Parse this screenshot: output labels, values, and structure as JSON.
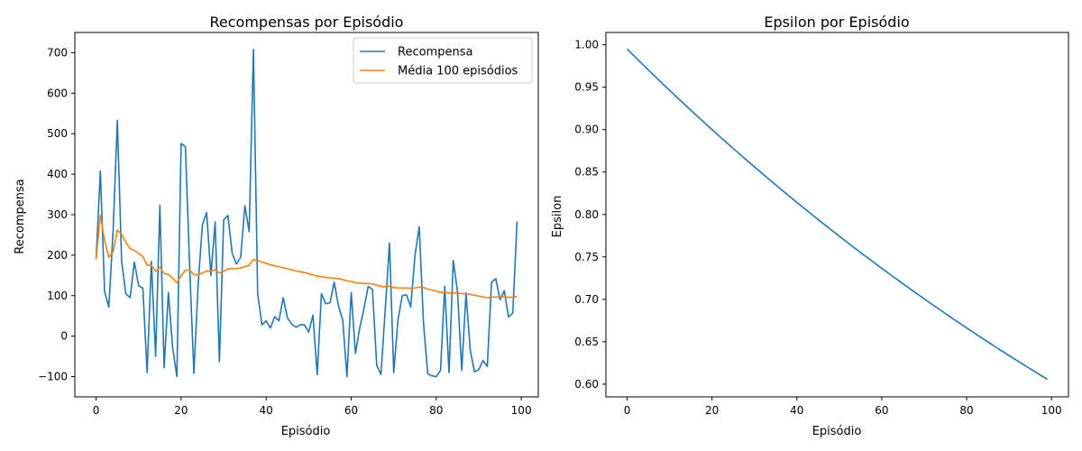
{
  "chart_data": [
    {
      "type": "line",
      "title": "Recompensas por Episódio",
      "xlabel": "Episódio",
      "ylabel": "Recompensa",
      "xlim": [
        -5,
        104
      ],
      "ylim": [
        -150,
        750
      ],
      "xticks": [
        0,
        20,
        40,
        60,
        80,
        100
      ],
      "yticks": [
        -100,
        0,
        100,
        200,
        300,
        400,
        500,
        600,
        700
      ],
      "xtick_labels": [
        "0",
        "20",
        "40",
        "60",
        "80",
        "100"
      ],
      "ytick_labels": [
        "−100",
        "0",
        "100",
        "200",
        "300",
        "400",
        "500",
        "600",
        "700"
      ],
      "grid": false,
      "legend": "top-right",
      "series": [
        {
          "name": "Recompensa",
          "color": "#1f77b4",
          "values": [
            190,
            408,
            110,
            72,
            260,
            533,
            185,
            105,
            95,
            183,
            125,
            118,
            -90,
            185,
            -50,
            323,
            -78,
            108,
            -28,
            -100,
            476,
            468,
            173,
            -92,
            128,
            275,
            305,
            150,
            282,
            -63,
            287,
            298,
            205,
            178,
            195,
            322,
            258,
            708,
            105,
            28,
            38,
            20,
            48,
            38,
            95,
            45,
            30,
            22,
            28,
            28,
            10,
            52,
            -95,
            105,
            80,
            82,
            133,
            75,
            40,
            -100,
            108,
            -43,
            20,
            68,
            123,
            115,
            -72,
            -95,
            65,
            230,
            -90,
            40,
            100,
            102,
            72,
            200,
            270,
            32,
            -93,
            -98,
            -100,
            -85,
            123,
            -90,
            187,
            110,
            -85,
            107,
            -35,
            -88,
            -83,
            -60,
            -75,
            133,
            142,
            90,
            112,
            47,
            57,
            283
          ]
        },
        {
          "name": "Média 100 episódios",
          "color": "#ff7f0e",
          "values": [
            190,
            299,
            236,
            195,
            208,
            262,
            251,
            232,
            216,
            212,
            204,
            197,
            175,
            175,
            160,
            170,
            155,
            152,
            143,
            132,
            149,
            163,
            163,
            152,
            151,
            156,
            161,
            160,
            164,
            156,
            160,
            166,
            167,
            167,
            168,
            172,
            175,
            189,
            187,
            183,
            180,
            176,
            174,
            171,
            169,
            166,
            164,
            161,
            159,
            157,
            154,
            152,
            148,
            147,
            145,
            144,
            143,
            142,
            140,
            136,
            135,
            132,
            131,
            130,
            130,
            129,
            126,
            123,
            122,
            123,
            120,
            119,
            119,
            119,
            118,
            119,
            121,
            120,
            116,
            114,
            111,
            108,
            109,
            106,
            107,
            107,
            105,
            105,
            103,
            101,
            99,
            97,
            95,
            96,
            97,
            97,
            97,
            96,
            96,
            98
          ]
        }
      ]
    },
    {
      "type": "line",
      "title": "Epsilon por Episódio",
      "xlabel": "Episódio",
      "ylabel": "Epsilon",
      "xlim": [
        -5,
        104
      ],
      "ylim": [
        0.585,
        1.0145
      ],
      "xticks": [
        0,
        20,
        40,
        60,
        80,
        100
      ],
      "yticks": [
        0.6,
        0.65,
        0.7,
        0.75,
        0.8,
        0.85,
        0.9,
        0.95,
        1.0
      ],
      "xtick_labels": [
        "0",
        "20",
        "40",
        "60",
        "80",
        "100"
      ],
      "ytick_labels": [
        "0.60",
        "0.65",
        "0.70",
        "0.75",
        "0.80",
        "0.85",
        "0.90",
        "0.95",
        "1.00"
      ],
      "grid": false,
      "legend": "none",
      "series": [
        {
          "color": "#1f77b4",
          "x_range": [
            0,
            99
          ],
          "start_value": 0.995,
          "decay_per_episode": 0.995
        }
      ]
    }
  ]
}
